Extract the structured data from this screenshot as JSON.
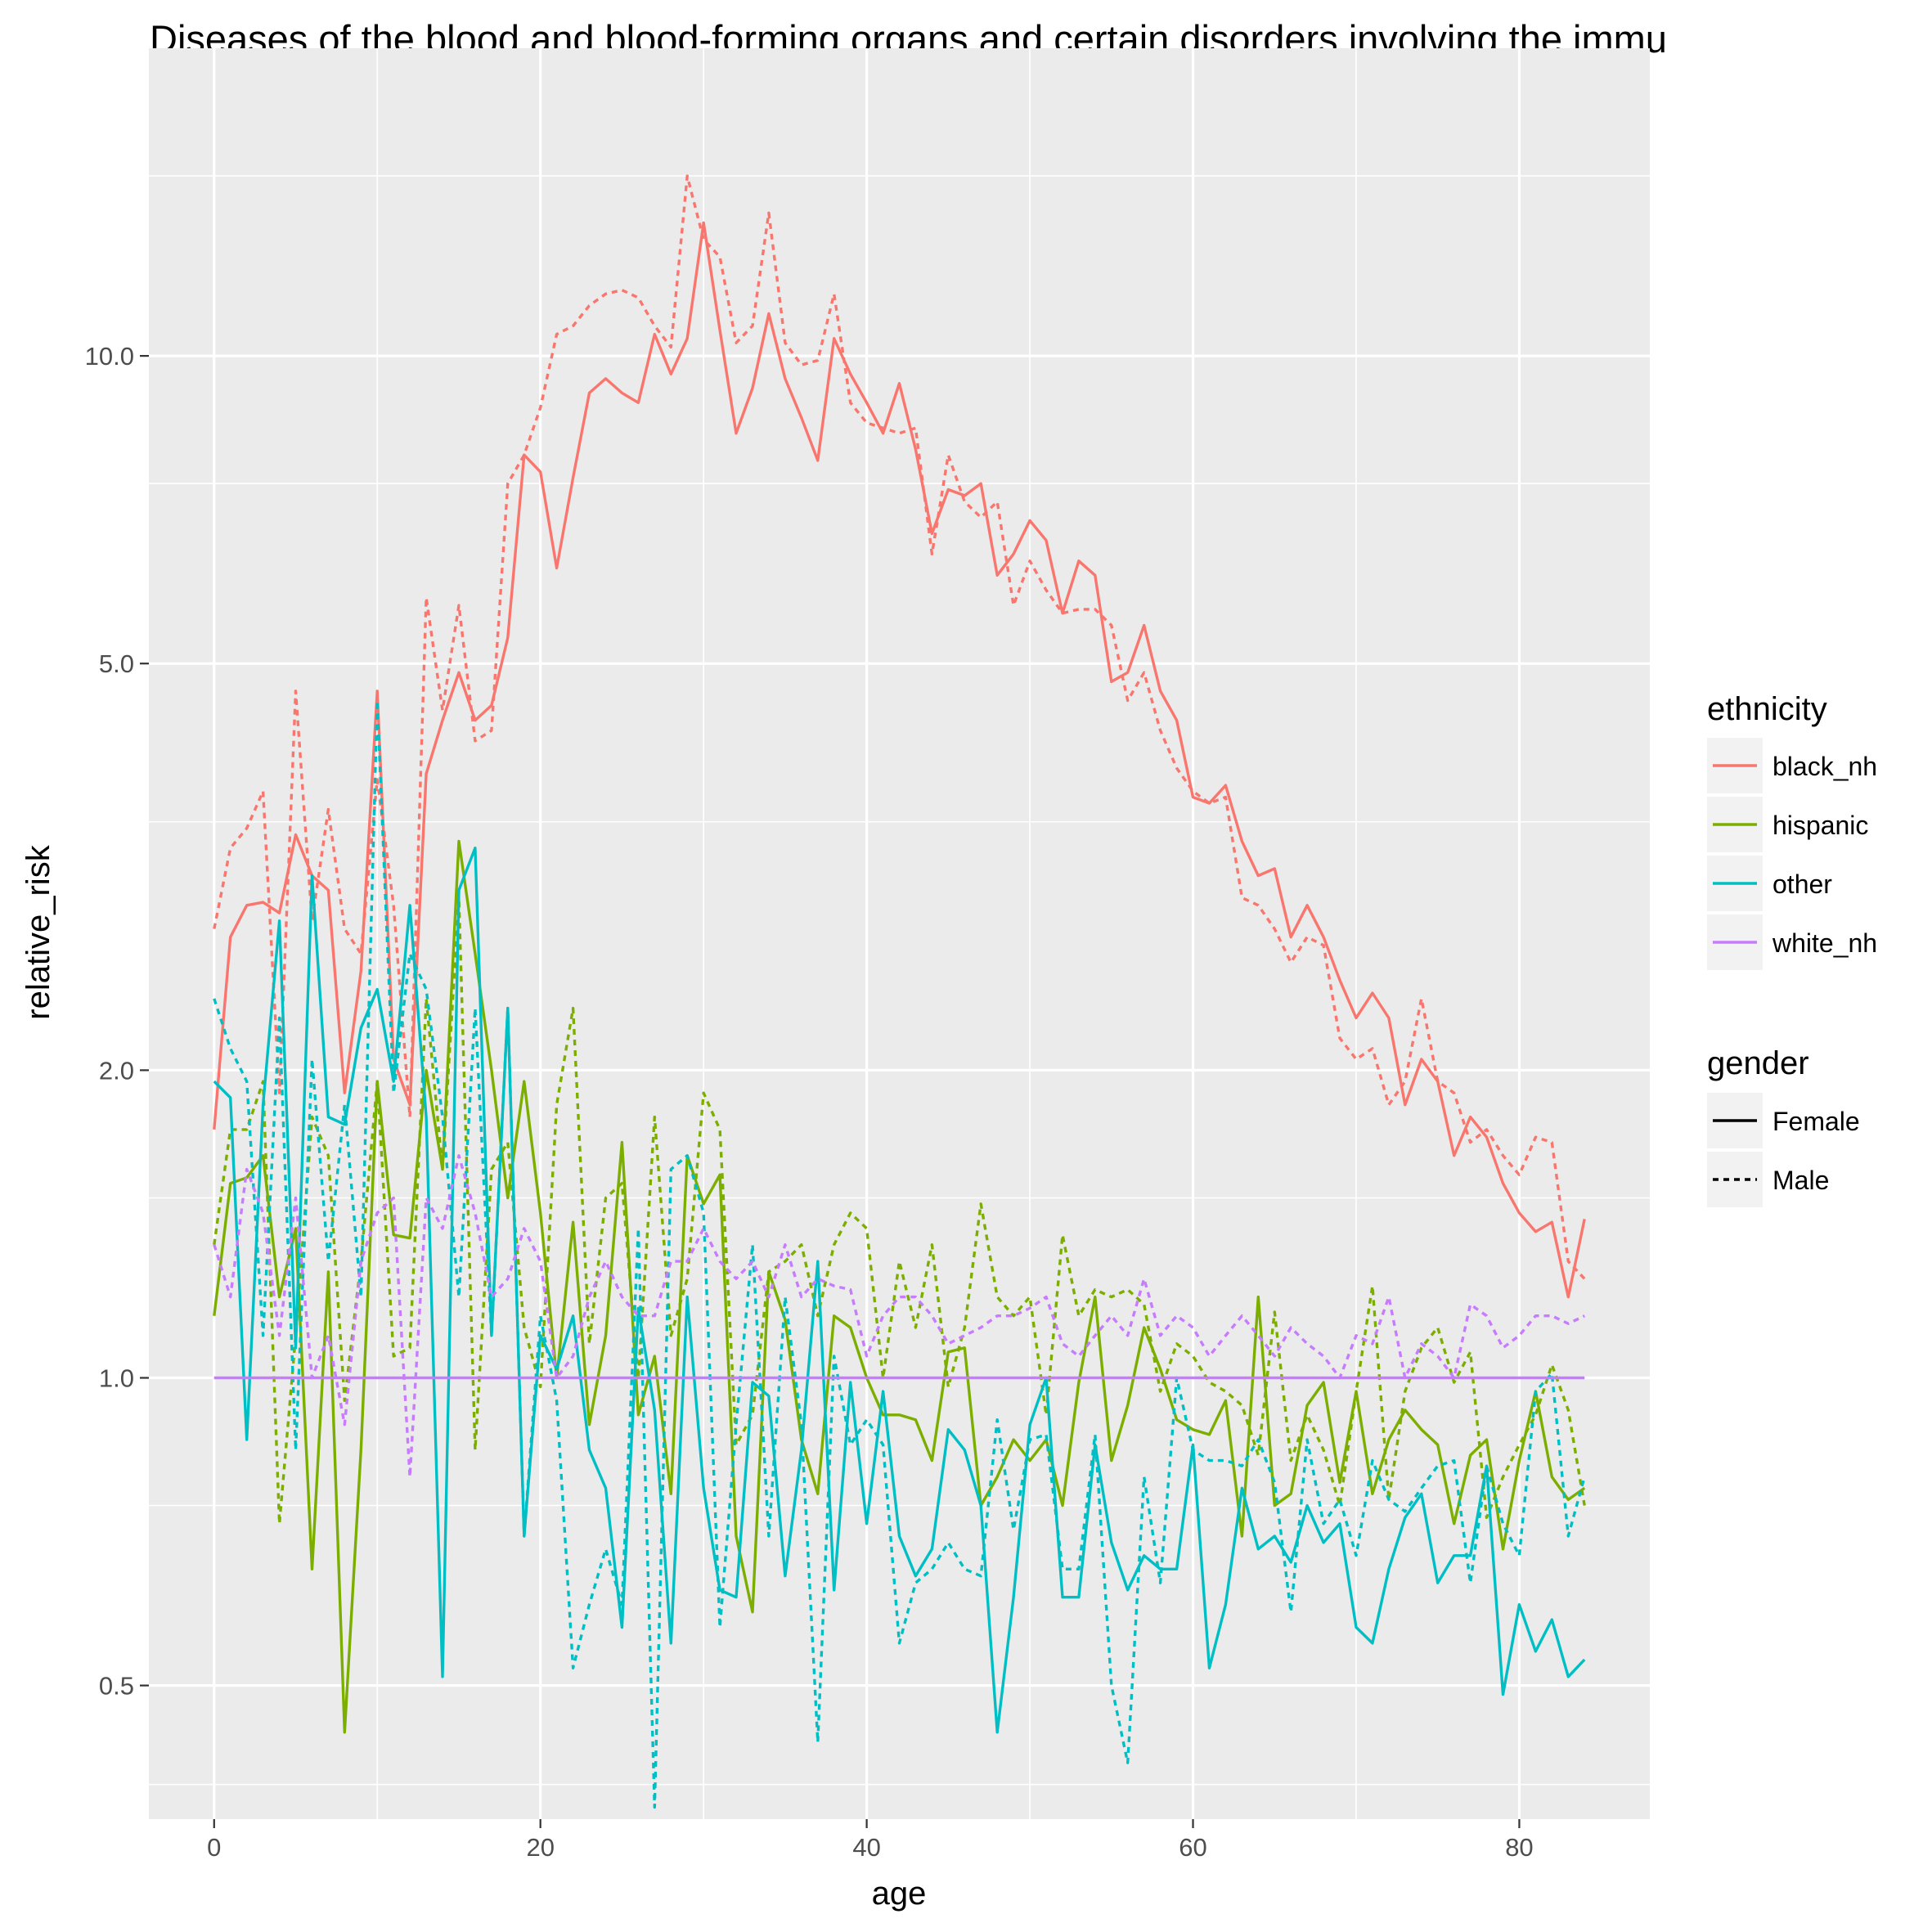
{
  "chart_data": {
    "type": "line",
    "title": "Diseases of the blood and blood-forming organs and certain disorders involving the immu",
    "xlabel": "age",
    "ylabel": "relative_risk",
    "xlim": [
      -4,
      88
    ],
    "ylim": [
      0.37,
      20
    ],
    "y_scale": "log",
    "x_ticks": [
      0,
      20,
      40,
      60,
      80
    ],
    "x_tick_labels": [
      "0",
      "20",
      "40",
      "60",
      "80"
    ],
    "y_ticks": [
      0.5,
      1.0,
      2.0,
      5.0,
      10.0
    ],
    "y_tick_labels": [
      "0.5",
      "1.0",
      "2.0",
      "5.0",
      "10.0"
    ],
    "y_minor_ticks": [
      0.4,
      0.75,
      1.5,
      3.5,
      7.5,
      15
    ],
    "x_minor_ticks": [
      10,
      30,
      50,
      70
    ],
    "grid": true,
    "legend_position": "right",
    "colors": {
      "panel": "#EBEBEB",
      "grid": "#FFFFFF",
      "black_nh": "#F8766D",
      "hispanic": "#7CAE00",
      "other": "#00BFC4",
      "white_nh": "#C77CFF"
    },
    "legend": {
      "ethnicity_title": "ethnicity",
      "ethnicity_items": [
        "black_nh",
        "hispanic",
        "other",
        "white_nh"
      ],
      "gender_title": "gender",
      "gender_items": [
        "Female",
        "Male"
      ]
    },
    "series": [
      {
        "ethnicity": "black_nh",
        "gender": "Female",
        "values": [
          1.75,
          2.7,
          2.9,
          2.92,
          2.85,
          3.4,
          3.1,
          3.0,
          1.9,
          2.5,
          4.7,
          2.05,
          1.85,
          3.9,
          4.4,
          4.9,
          4.4,
          4.55,
          5.3,
          8.0,
          7.7,
          6.2,
          7.6,
          9.2,
          9.5,
          9.2,
          9.0,
          10.5,
          9.6,
          10.4,
          13.5,
          10.6,
          8.4,
          9.3,
          11.0,
          9.5,
          8.7,
          7.9,
          10.4,
          9.6,
          9.0,
          8.4,
          9.4,
          8.1,
          6.7,
          7.4,
          7.3,
          7.5,
          6.1,
          6.4,
          6.9,
          6.6,
          5.6,
          6.3,
          6.1,
          4.8,
          4.9,
          5.45,
          4.7,
          4.4,
          3.7,
          3.65,
          3.8,
          3.35,
          3.1,
          3.15,
          2.7,
          2.9,
          2.7,
          2.45,
          2.25,
          2.38,
          2.25,
          1.85,
          2.05,
          1.95,
          1.65,
          1.8,
          1.72,
          1.55,
          1.45,
          1.39,
          1.42,
          1.2,
          1.43
        ]
      },
      {
        "ethnicity": "black_nh",
        "gender": "Male",
        "values": [
          2.75,
          3.3,
          3.45,
          3.75,
          1.9,
          4.7,
          2.8,
          3.6,
          2.75,
          2.6,
          3.85,
          2.9,
          1.8,
          5.8,
          4.5,
          5.7,
          4.2,
          4.3,
          7.5,
          8.0,
          8.9,
          10.5,
          10.7,
          11.2,
          11.5,
          11.6,
          11.4,
          10.7,
          10.2,
          15.0,
          13.0,
          12.5,
          10.3,
          10.7,
          13.8,
          10.3,
          9.8,
          9.9,
          11.5,
          9.0,
          8.6,
          8.5,
          8.4,
          8.5,
          6.4,
          8.0,
          7.2,
          6.95,
          7.2,
          5.7,
          6.3,
          5.9,
          5.6,
          5.65,
          5.65,
          5.45,
          4.6,
          4.9,
          4.3,
          3.95,
          3.75,
          3.65,
          3.7,
          2.95,
          2.9,
          2.75,
          2.55,
          2.7,
          2.65,
          2.15,
          2.05,
          2.1,
          1.85,
          1.95,
          2.35,
          1.95,
          1.9,
          1.7,
          1.75,
          1.65,
          1.58,
          1.72,
          1.7,
          1.3,
          1.25
        ]
      },
      {
        "ethnicity": "hispanic",
        "gender": "Female",
        "values": [
          1.15,
          1.55,
          1.57,
          1.65,
          1.2,
          1.4,
          0.65,
          1.27,
          0.45,
          0.85,
          1.95,
          1.38,
          1.37,
          2.0,
          1.6,
          3.35,
          2.6,
          2.0,
          1.5,
          1.95,
          1.45,
          1.0,
          1.42,
          0.9,
          1.1,
          1.7,
          0.92,
          1.05,
          0.77,
          1.65,
          1.48,
          1.58,
          0.7,
          0.59,
          1.27,
          1.14,
          0.87,
          0.77,
          1.15,
          1.12,
          1.0,
          0.92,
          0.92,
          0.91,
          0.83,
          1.06,
          1.07,
          0.75,
          0.8,
          0.87,
          0.83,
          0.87,
          0.75,
          0.99,
          1.2,
          0.83,
          0.94,
          1.12,
          1.02,
          0.91,
          0.89,
          0.88,
          0.95,
          0.7,
          1.2,
          0.75,
          0.77,
          0.94,
          0.99,
          0.79,
          0.97,
          0.77,
          0.87,
          0.93,
          0.89,
          0.86,
          0.72,
          0.84,
          0.87,
          0.68,
          0.83,
          0.97,
          0.8,
          0.76,
          0.78
        ]
      },
      {
        "ethnicity": "hispanic",
        "gender": "Male",
        "values": [
          1.35,
          1.75,
          1.75,
          1.95,
          0.72,
          1.1,
          1.8,
          1.65,
          0.95,
          1.3,
          1.95,
          1.05,
          1.07,
          2.35,
          1.6,
          2.95,
          0.85,
          1.6,
          1.7,
          1.12,
          0.98,
          1.85,
          2.3,
          1.08,
          1.5,
          1.55,
          1.0,
          1.8,
          1.1,
          1.25,
          1.9,
          1.75,
          0.86,
          0.92,
          1.27,
          1.3,
          1.35,
          1.15,
          1.35,
          1.45,
          1.4,
          1.0,
          1.3,
          1.12,
          1.35,
          0.98,
          1.12,
          1.48,
          1.2,
          1.15,
          1.2,
          0.92,
          1.38,
          1.15,
          1.22,
          1.2,
          1.22,
          1.18,
          0.97,
          1.08,
          1.05,
          0.99,
          0.97,
          0.94,
          0.84,
          1.16,
          0.83,
          0.92,
          0.85,
          0.75,
          0.97,
          1.23,
          0.76,
          0.97,
          1.07,
          1.12,
          0.99,
          1.06,
          0.73,
          0.8,
          0.86,
          0.92,
          1.03,
          0.93,
          0.75
        ]
      },
      {
        "ethnicity": "other",
        "gender": "Female",
        "values": [
          1.95,
          1.88,
          0.87,
          1.85,
          2.8,
          1.07,
          3.1,
          1.8,
          1.77,
          2.2,
          2.4,
          1.95,
          2.9,
          1.8,
          0.51,
          3.0,
          3.3,
          1.1,
          2.3,
          0.7,
          1.1,
          1.02,
          1.15,
          0.85,
          0.78,
          0.57,
          1.17,
          0.93,
          0.55,
          1.2,
          0.78,
          0.62,
          0.61,
          0.99,
          0.96,
          0.64,
          0.85,
          1.3,
          0.62,
          0.99,
          0.72,
          0.97,
          0.7,
          0.64,
          0.68,
          0.89,
          0.85,
          0.75,
          0.45,
          0.61,
          0.9,
          1.0,
          0.61,
          0.61,
          0.86,
          0.69,
          0.62,
          0.67,
          0.65,
          0.65,
          0.86,
          0.52,
          0.6,
          0.78,
          0.68,
          0.7,
          0.66,
          0.75,
          0.69,
          0.72,
          0.57,
          0.55,
          0.65,
          0.73,
          0.77,
          0.63,
          0.67,
          0.67,
          0.82,
          0.49,
          0.6,
          0.54,
          0.58,
          0.51,
          0.53
        ]
      },
      {
        "ethnicity": "other",
        "gender": "Male",
        "values": [
          2.35,
          2.1,
          1.95,
          1.1,
          2.25,
          0.85,
          2.05,
          1.3,
          1.85,
          1.2,
          4.6,
          1.9,
          2.6,
          2.4,
          1.8,
          1.2,
          2.3,
          1.1,
          2.3,
          0.7,
          1.15,
          0.95,
          0.52,
          0.6,
          0.68,
          0.6,
          1.4,
          0.38,
          1.6,
          1.65,
          1.45,
          0.57,
          0.9,
          1.35,
          0.7,
          1.2,
          0.9,
          0.44,
          1.05,
          0.86,
          0.91,
          0.86,
          0.55,
          0.63,
          0.65,
          0.69,
          0.65,
          0.64,
          0.91,
          0.71,
          0.87,
          0.88,
          0.65,
          0.65,
          0.88,
          0.5,
          0.42,
          0.8,
          0.63,
          1.0,
          0.85,
          0.83,
          0.83,
          0.82,
          0.87,
          0.79,
          0.59,
          0.87,
          0.72,
          0.76,
          0.67,
          0.83,
          0.76,
          0.74,
          0.78,
          0.82,
          0.83,
          0.63,
          0.82,
          0.72,
          0.67,
          0.97,
          1.01,
          0.7,
          0.8
        ]
      },
      {
        "ethnicity": "white_nh",
        "gender": "Female",
        "values": [
          1.0,
          1.0,
          1.0,
          1.0,
          1.0,
          1.0,
          1.0,
          1.0,
          1.0,
          1.0,
          1.0,
          1.0,
          1.0,
          1.0,
          1.0,
          1.0,
          1.0,
          1.0,
          1.0,
          1.0,
          1.0,
          1.0,
          1.0,
          1.0,
          1.0,
          1.0,
          1.0,
          1.0,
          1.0,
          1.0,
          1.0,
          1.0,
          1.0,
          1.0,
          1.0,
          1.0,
          1.0,
          1.0,
          1.0,
          1.0,
          1.0,
          1.0,
          1.0,
          1.0,
          1.0,
          1.0,
          1.0,
          1.0,
          1.0,
          1.0,
          1.0,
          1.0,
          1.0,
          1.0,
          1.0,
          1.0,
          1.0,
          1.0,
          1.0,
          1.0,
          1.0,
          1.0,
          1.0,
          1.0,
          1.0,
          1.0,
          1.0,
          1.0,
          1.0,
          1.0,
          1.0,
          1.0,
          1.0,
          1.0,
          1.0,
          1.0,
          1.0,
          1.0,
          1.0,
          1.0,
          1.0,
          1.0,
          1.0,
          1.0,
          1.0
        ]
      },
      {
        "ethnicity": "white_nh",
        "gender": "Male",
        "values": [
          1.35,
          1.2,
          1.6,
          1.45,
          1.1,
          1.5,
          1.0,
          1.1,
          0.9,
          1.3,
          1.45,
          1.5,
          0.8,
          1.5,
          1.4,
          1.65,
          1.45,
          1.2,
          1.25,
          1.4,
          1.3,
          1.0,
          1.05,
          1.2,
          1.3,
          1.2,
          1.15,
          1.15,
          1.3,
          1.3,
          1.4,
          1.3,
          1.25,
          1.3,
          1.2,
          1.35,
          1.2,
          1.25,
          1.23,
          1.22,
          1.05,
          1.15,
          1.2,
          1.2,
          1.15,
          1.08,
          1.1,
          1.12,
          1.15,
          1.15,
          1.17,
          1.2,
          1.08,
          1.05,
          1.1,
          1.15,
          1.1,
          1.25,
          1.1,
          1.15,
          1.12,
          1.05,
          1.1,
          1.15,
          1.1,
          1.05,
          1.12,
          1.08,
          1.05,
          1.0,
          1.1,
          1.08,
          1.2,
          1.0,
          1.08,
          1.05,
          1.0,
          1.18,
          1.15,
          1.07,
          1.1,
          1.15,
          1.15,
          1.13,
          1.15
        ]
      }
    ]
  }
}
